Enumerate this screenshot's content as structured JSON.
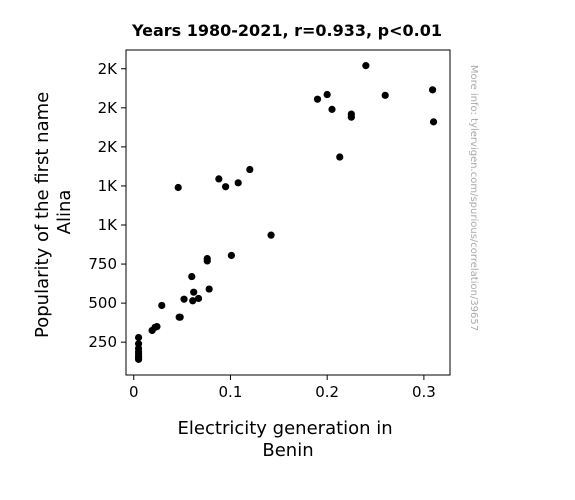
{
  "chart_data": {
    "type": "scatter",
    "title": "Years 1980-2021, r=0.933, p<0.01",
    "xlabel": [
      "Electricity generation in",
      "Benin"
    ],
    "ylabel": [
      "Popularity of the first name",
      "Alina"
    ],
    "xlim": [
      -0.008,
      0.327
    ],
    "ylim": [
      40,
      2120
    ],
    "xticks": [
      {
        "value": 0,
        "label": "0"
      },
      {
        "value": 0.1,
        "label": "0.1"
      },
      {
        "value": 0.2,
        "label": "0.2"
      },
      {
        "value": 0.3,
        "label": "0.3"
      }
    ],
    "yticks": [
      {
        "value": 250,
        "label": "250"
      },
      {
        "value": 500,
        "label": "500"
      },
      {
        "value": 750,
        "label": "750"
      },
      {
        "value": 1000,
        "label": "1K"
      },
      {
        "value": 1250,
        "label": "1K"
      },
      {
        "value": 1500,
        "label": "2K"
      },
      {
        "value": 1750,
        "label": "2K"
      },
      {
        "value": 2000,
        "label": "2K"
      }
    ],
    "grid": false,
    "marker_color": "#000000",
    "points": [
      {
        "x": 0.005,
        "y": 140
      },
      {
        "x": 0.005,
        "y": 150
      },
      {
        "x": 0.005,
        "y": 160
      },
      {
        "x": 0.005,
        "y": 175
      },
      {
        "x": 0.005,
        "y": 190
      },
      {
        "x": 0.005,
        "y": 210
      },
      {
        "x": 0.005,
        "y": 240
      },
      {
        "x": 0.005,
        "y": 280
      },
      {
        "x": 0.019,
        "y": 325
      },
      {
        "x": 0.022,
        "y": 345
      },
      {
        "x": 0.024,
        "y": 350
      },
      {
        "x": 0.029,
        "y": 485
      },
      {
        "x": 0.047,
        "y": 410
      },
      {
        "x": 0.048,
        "y": 410
      },
      {
        "x": 0.052,
        "y": 525
      },
      {
        "x": 0.06,
        "y": 670
      },
      {
        "x": 0.061,
        "y": 515
      },
      {
        "x": 0.062,
        "y": 570
      },
      {
        "x": 0.067,
        "y": 530
      },
      {
        "x": 0.076,
        "y": 770
      },
      {
        "x": 0.076,
        "y": 785
      },
      {
        "x": 0.078,
        "y": 590
      },
      {
        "x": 0.101,
        "y": 805
      },
      {
        "x": 0.046,
        "y": 1240
      },
      {
        "x": 0.088,
        "y": 1295
      },
      {
        "x": 0.095,
        "y": 1245
      },
      {
        "x": 0.108,
        "y": 1270
      },
      {
        "x": 0.12,
        "y": 1355
      },
      {
        "x": 0.142,
        "y": 935
      },
      {
        "x": 0.19,
        "y": 1805
      },
      {
        "x": 0.2,
        "y": 1835
      },
      {
        "x": 0.205,
        "y": 1740
      },
      {
        "x": 0.213,
        "y": 1435
      },
      {
        "x": 0.225,
        "y": 1710
      },
      {
        "x": 0.225,
        "y": 1690
      },
      {
        "x": 0.24,
        "y": 2020
      },
      {
        "x": 0.26,
        "y": 1830
      },
      {
        "x": 0.309,
        "y": 1865
      },
      {
        "x": 0.31,
        "y": 1660
      }
    ]
  },
  "watermark": "More info: tylervigen.com/spurious/correlation/39657"
}
